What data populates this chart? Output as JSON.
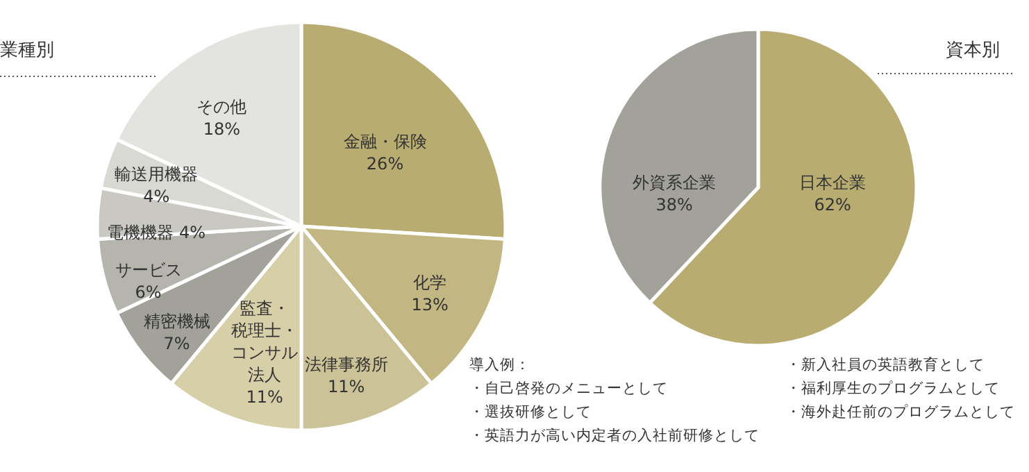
{
  "chart_data": [
    {
      "type": "pie",
      "title": "業種別",
      "categories": [
        "金融・保険",
        "化学",
        "法律事務所",
        "監査・税理士・コンサル法人",
        "精密機械",
        "サービス",
        "電機機器",
        "輸送用機器",
        "その他"
      ],
      "values": [
        26,
        13,
        11,
        11,
        7,
        6,
        4,
        4,
        18
      ],
      "value_labels": [
        "26%",
        "13%",
        "11%",
        "11%",
        "7%",
        "6%",
        "4%",
        "4%",
        "18%"
      ],
      "colors": [
        "#b8ac70",
        "#c2b683",
        "#cbc297",
        "#d6cfa8",
        "#a3a29a",
        "#b5b4ad",
        "#c9c8c2",
        "#d9d9d4",
        "#e3e3df"
      ]
    },
    {
      "type": "pie",
      "title": "資本別",
      "categories": [
        "日本企業",
        "外資系企業"
      ],
      "values": [
        62,
        38
      ],
      "value_labels": [
        "62%",
        "38%"
      ],
      "colors": [
        "#b8ac70",
        "#a3a29a"
      ],
      "annotations": [
        "導入例：",
        "・自己啓発のメニューとして",
        "・選抜研修として",
        "・英語力が高い内定者の入社前研修として",
        "・新入社員の英語教育として",
        "・福利厚生のプログラムとして",
        "・海外赴任前のプログラムとして"
      ]
    }
  ]
}
